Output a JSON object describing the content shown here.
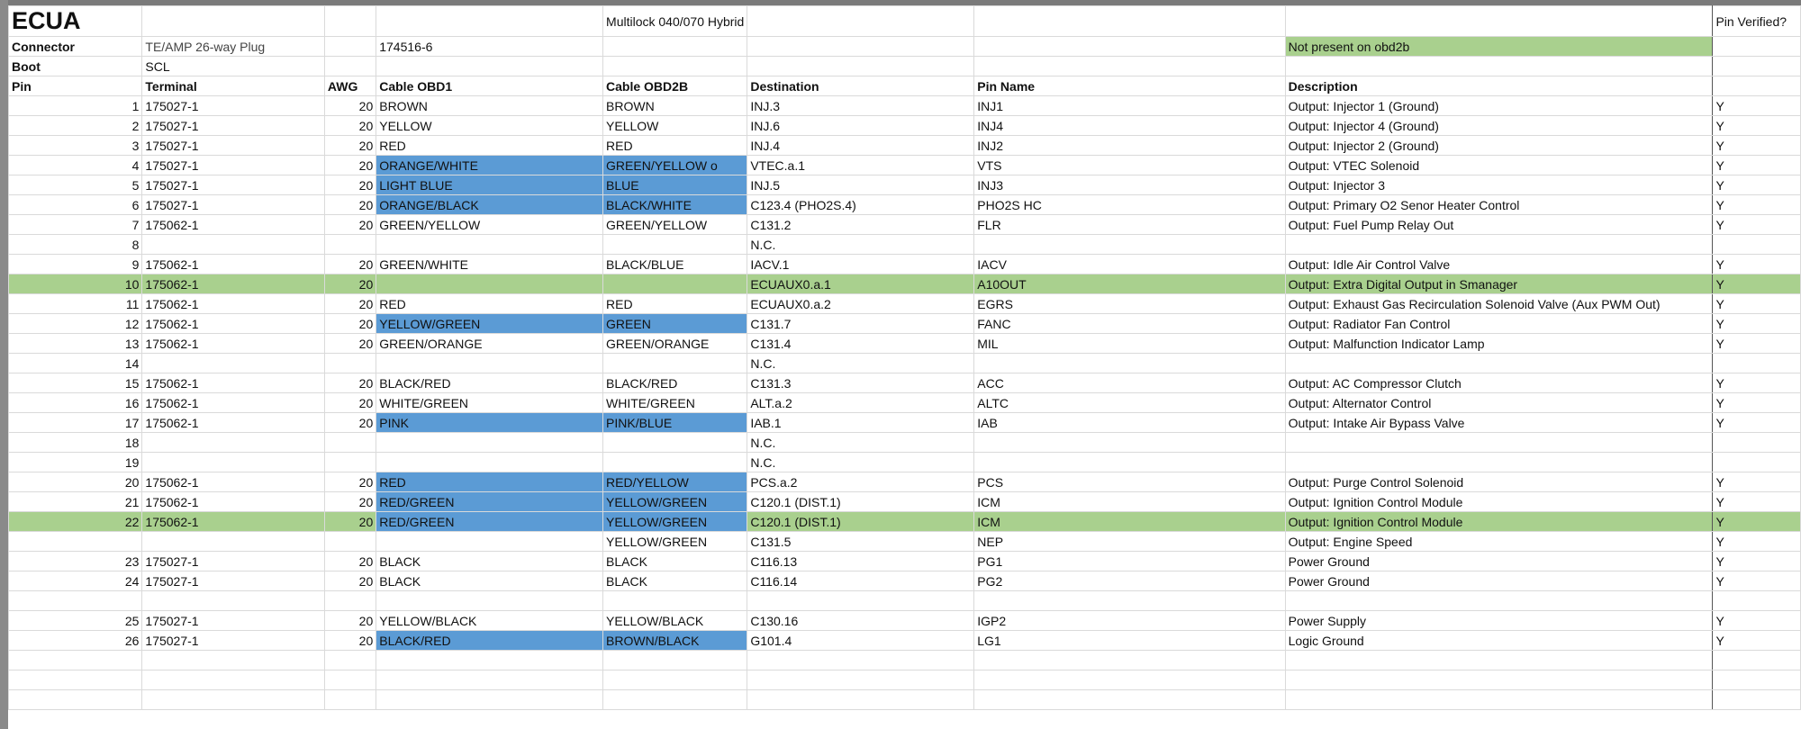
{
  "header": {
    "title": "ECUA",
    "subtitle": "Multilock 040/070 Hybrid",
    "verified_label": "Pin Verified?"
  },
  "connector": {
    "label": "Connector",
    "name": "TE/AMP 26-way Plug",
    "part": "174516-6",
    "note": "Not present on obd2b"
  },
  "boot": {
    "label": "Boot",
    "value": "SCL"
  },
  "table": {
    "columns": [
      "Pin",
      "Terminal",
      "AWG",
      "Cable OBD1",
      "Cable OBD2B",
      "Destination",
      "Pin Name",
      "Description"
    ],
    "rows": [
      [
        1,
        "175027-1",
        20,
        "BROWN",
        "BROWN",
        "INJ.3",
        "INJ1",
        "Output: Injector 1 (Ground)",
        "Y"
      ],
      [
        2,
        "175027-1",
        20,
        "YELLOW",
        "YELLOW",
        "INJ.6",
        "INJ4",
        "Output: Injector 4 (Ground)",
        "Y"
      ],
      [
        3,
        "175027-1",
        20,
        "RED",
        "RED",
        "INJ.4",
        "INJ2",
        "Output: Injector 2 (Ground)",
        "Y"
      ],
      [
        4,
        "175027-1",
        20,
        "ORANGE/WHITE",
        "GREEN/YELLOW o",
        "VTEC.a.1",
        "VTS",
        "Output: VTEC Solenoid",
        "Y"
      ],
      [
        5,
        "175027-1",
        20,
        "LIGHT BLUE",
        "BLUE",
        "INJ.5",
        "INJ3",
        "Output: Injector 3",
        "Y"
      ],
      [
        6,
        "175027-1",
        20,
        "ORANGE/BLACK",
        "BLACK/WHITE",
        "C123.4 (PHO2S.4)",
        "PHO2S HC",
        "Output: Primary O2 Senor Heater Control",
        "Y"
      ],
      [
        7,
        "175062-1",
        20,
        "GREEN/YELLOW",
        "GREEN/YELLOW",
        "C131.2",
        "FLR",
        "Output: Fuel Pump Relay Out",
        "Y"
      ],
      [
        8,
        null,
        null,
        null,
        null,
        "N.C.",
        null,
        null,
        null
      ],
      [
        9,
        "175062-1",
        20,
        "GREEN/WHITE",
        "BLACK/BLUE",
        "IACV.1",
        "IACV",
        "Output: Idle Air Control Valve",
        "Y"
      ],
      [
        10,
        "175062-1",
        20,
        null,
        null,
        "ECUAUX0.a.1",
        "A10OUT",
        "Output: Extra Digital Output in Smanager",
        "Y"
      ],
      [
        11,
        "175062-1",
        20,
        "RED",
        "RED",
        "ECUAUX0.a.2",
        "EGRS",
        "Output: Exhaust Gas Recirculation Solenoid Valve (Aux PWM Out)",
        "Y"
      ],
      [
        12,
        "175062-1",
        20,
        "YELLOW/GREEN",
        "GREEN",
        "C131.7",
        "FANC",
        "Output: Radiator Fan Control",
        "Y"
      ],
      [
        13,
        "175062-1",
        20,
        "GREEN/ORANGE",
        "GREEN/ORANGE",
        "C131.4",
        "MIL",
        "Output: Malfunction Indicator Lamp",
        "Y"
      ],
      [
        14,
        null,
        null,
        null,
        null,
        "N.C.",
        null,
        null,
        null
      ],
      [
        15,
        "175062-1",
        20,
        "BLACK/RED",
        "BLACK/RED",
        "C131.3",
        "ACC",
        "Output: AC Compressor Clutch",
        "Y"
      ],
      [
        16,
        "175062-1",
        20,
        "WHITE/GREEN",
        "WHITE/GREEN",
        "ALT.a.2",
        "ALTC",
        "Output: Alternator Control",
        "Y"
      ],
      [
        17,
        "175062-1",
        20,
        "PINK",
        "PINK/BLUE",
        "IAB.1",
        "IAB",
        "Output: Intake Air Bypass Valve",
        "Y"
      ],
      [
        18,
        null,
        null,
        null,
        null,
        "N.C.",
        null,
        null,
        null
      ],
      [
        19,
        null,
        null,
        null,
        null,
        "N.C.",
        null,
        null,
        null
      ],
      [
        20,
        "175062-1",
        20,
        "RED",
        "RED/YELLOW",
        "PCS.a.2",
        "PCS",
        "Output: Purge Control Solenoid",
        "Y"
      ],
      [
        21,
        "175062-1",
        20,
        "RED/GREEN",
        "YELLOW/GREEN",
        "C120.1 (DIST.1)",
        "ICM",
        "Output: Ignition Control Module",
        "Y"
      ],
      [
        22,
        "175062-1",
        20,
        "RED/GREEN",
        "YELLOW/GREEN",
        "C120.1 (DIST.1)",
        "ICM",
        "Output: Ignition Control Module",
        "Y"
      ],
      [
        null,
        null,
        null,
        null,
        "YELLOW/GREEN",
        "C131.5",
        "NEP",
        "Output: Engine Speed",
        "Y"
      ],
      [
        23,
        "175027-1",
        20,
        "BLACK",
        "BLACK",
        "C116.13",
        "PG1",
        "Power Ground",
        "Y"
      ],
      [
        24,
        "175027-1",
        20,
        "BLACK",
        "BLACK",
        "C116.14",
        "PG2",
        "Power Ground",
        "Y"
      ],
      [
        null,
        null,
        null,
        null,
        null,
        null,
        null,
        null,
        null
      ],
      [
        25,
        "175027-1",
        20,
        "YELLOW/BLACK",
        "YELLOW/BLACK",
        "C130.16",
        "IGP2",
        "Power Supply",
        "Y"
      ],
      [
        26,
        "175027-1",
        20,
        "BLACK/RED",
        "BROWN/BLACK",
        "G101.4",
        "LG1",
        "Logic Ground",
        "Y"
      ]
    ]
  }
}
